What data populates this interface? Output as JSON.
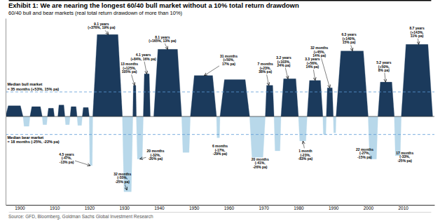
{
  "chart_data": {
    "type": "area",
    "title": "Exhibit 1: We are nearing the longest 60/40 bull market without a 10% total return drawdown",
    "subtitle": "60/40 bull and bear markets (real total return drawdown of more than 10%)",
    "source": "Source: GFD, Bloomberg, Goldman Sachs Global Investment Research",
    "xlim": [
      1896,
      2019
    ],
    "xticks": [
      1900,
      1910,
      1920,
      1930,
      1940,
      1950,
      1960,
      1970,
      1980,
      1990,
      2000,
      2010
    ],
    "ylim": [
      -1.08,
      1.2
    ],
    "tick_labels": "x",
    "series": [
      {
        "color": "#1b3a5c",
        "start": [
          1896.0,
          1903.0,
          1908.0,
          1911.0,
          1914.5,
          1918.0,
          1921.0,
          1932.5,
          1935.5,
          1938.5,
          1949.0,
          1957.5,
          1970.5,
          1975.0,
          1982.5,
          1988.0,
          1990.8,
          2002.8,
          2009.5
        ],
        "end": [
          1901.0,
          1906.5,
          1910.0,
          1913.0,
          1916.5,
          1920.0,
          1929.5,
          1933.5,
          1937.5,
          1946.5,
          1956.5,
          1966.0,
          1973.0,
          1980.0,
          1987.0,
          1990.0,
          2000.0,
          2007.5,
          2018.5
        ],
        "values": [
          0.13,
          0.12,
          0.1,
          0.14,
          0.12,
          0.11,
          1.0,
          0.38,
          0.52,
          0.82,
          0.5,
          0.45,
          0.38,
          0.46,
          0.44,
          0.35,
          0.8,
          0.42,
          0.88
        ]
      },
      {
        "color": "#b8d8ea",
        "start": [
          1901.0,
          1906.5,
          1913.0,
          1916.5,
          1920.0,
          1929.5,
          1933.5,
          1946.5,
          1956.5,
          1966.0,
          1973.0,
          1980.0,
          1987.0,
          1990.0,
          2000.0,
          2007.5
        ],
        "end": [
          1903.0,
          1908.0,
          1914.5,
          1918.0,
          1921.0,
          1932.5,
          1935.5,
          1949.0,
          1957.5,
          1970.5,
          1975.0,
          1982.5,
          1988.0,
          1990.8,
          2002.8,
          2009.5
        ],
        "values": [
          -0.12,
          -0.1,
          -0.1,
          -0.11,
          -0.6,
          -0.92,
          -0.52,
          -0.44,
          -0.26,
          -0.5,
          -0.42,
          -0.3,
          -0.22,
          -0.2,
          -0.52,
          -0.48
        ]
      }
    ],
    "reference_lines": [
      {
        "value": 0.3,
        "label": "Median bull market\n= 35 months (+53%, 15% pa)",
        "color": "#5b9bd5"
      },
      {
        "value": -0.22,
        "label": "Median bear market\n= 18 months (-25%, -22% pa)",
        "color": "#5b9bd5"
      }
    ],
    "annotations": [
      {
        "text": "9.1 years\n(+376%, 19% pa)",
        "text_x": 1923.5,
        "text_y": 1.06,
        "x": 1925.5,
        "y": 1.0
      },
      {
        "text": "13 months\n(+125%,\n105% pa)",
        "text_x": 1931.5,
        "text_y": 0.52,
        "x": 1933.0,
        "y": 0.38
      },
      {
        "text": "4.1 years\n(+84%, 16% pa)",
        "text_x": 1935.5,
        "text_y": 0.68,
        "x": 1936.5,
        "y": 0.52
      },
      {
        "text": "8.1 years\n(+165%, 13% pa)",
        "text_x": 1941.0,
        "text_y": 0.9,
        "x": 1942.5,
        "y": 0.82
      },
      {
        "text": "31 months\n(+50%,\n17% pa)",
        "text_x": 1960.0,
        "text_y": 0.62,
        "x": 1953.0,
        "y": 0.5
      },
      {
        "text": "7 months\n(+23%,\n38% pa)",
        "text_x": 1970.5,
        "text_y": 0.52,
        "x": 1971.5,
        "y": 0.38
      },
      {
        "text": "3.2 years\n(+103%,\n24% pa)",
        "text_x": 1975.8,
        "text_y": 0.6,
        "x": 1977.0,
        "y": 0.46
      },
      {
        "text": "3.3 years\n(+56%,\n14% pa)",
        "text_x": 1984.0,
        "text_y": 0.58,
        "x": 1984.8,
        "y": 0.44
      },
      {
        "text": "32 months\n(+45%,\n14% pa)",
        "text_x": 1986.0,
        "text_y": 0.72,
        "x": 1989.0,
        "y": 0.35
      },
      {
        "text": "6.3 years\n(+140%,\n15% pa)",
        "text_x": 1994.5,
        "text_y": 0.88,
        "x": 1995.5,
        "y": 0.8
      },
      {
        "text": "5.2 years\n(+50%,\n8% pa)",
        "text_x": 2004.5,
        "text_y": 0.54,
        "x": 2005.0,
        "y": 0.42
      },
      {
        "text": "8.7 years\n(+143%,\n11% pa)",
        "text_x": 2014.0,
        "text_y": 0.96,
        "x": 2014.5,
        "y": 0.88
      },
      {
        "text": "4.5 years\n(-47%,\n-13% pa)",
        "text_x": 1913.5,
        "text_y": -0.44,
        "x": 1920.3,
        "y": -0.6
      },
      {
        "text": "32 months\n(-55%,\n-25% pa)",
        "text_x": 1929.5,
        "text_y": -0.68,
        "x": 1930.8,
        "y": -0.9
      },
      {
        "text": "20 months\n(-32%,\n-20% pa)",
        "text_x": 1939.0,
        "text_y": -0.4,
        "x": 1934.5,
        "y": -0.52
      },
      {
        "text": "6 months\n(-17%,\n-29% pa)",
        "text_x": 1957.5,
        "text_y": -0.34,
        "x": 1957.5,
        "y": -0.34
      },
      {
        "text": "20 months\n(-41%,\n-26% pa)",
        "text_x": 1969.0,
        "text_y": -0.5,
        "x": 1968.5,
        "y": -0.5
      },
      {
        "text": "1 month\n(-23%,\n-83% pa)",
        "text_x": 1982.0,
        "text_y": -0.4,
        "x": 1981.3,
        "y": -0.3
      },
      {
        "text": "22 months\n(-27%,\n-15% pa)",
        "text_x": 1999.0,
        "text_y": -0.38,
        "x": 2001.5,
        "y": -0.52
      },
      {
        "text": "17 months\n(-33%,\n-25% pa)",
        "text_x": 2010.5,
        "text_y": -0.42,
        "x": 2008.5,
        "y": -0.48
      }
    ]
  }
}
